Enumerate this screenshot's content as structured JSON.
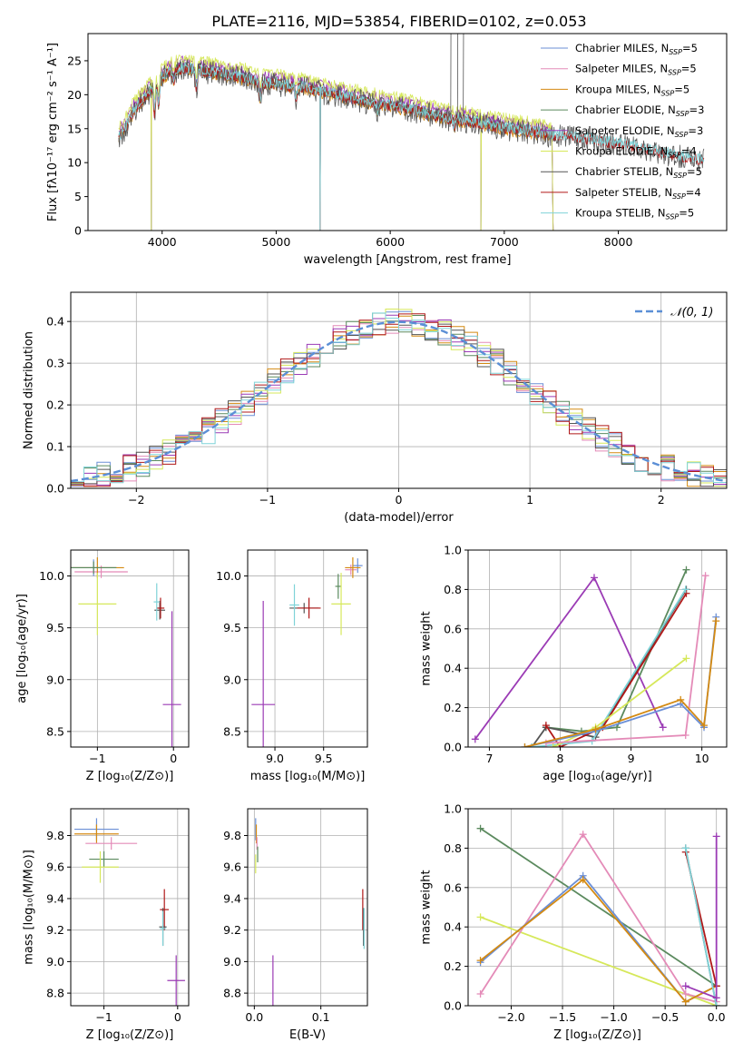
{
  "title": "PLATE=2116, MJD=53854, FIBERID=0102, z=0.053",
  "colors": {
    "c1": "#6b8fd6",
    "c2": "#e48bb8",
    "c3": "#d48a12",
    "c4": "#5b8a5e",
    "c5": "#9b3bb5",
    "c6": "#d6e85a",
    "c7": "#555555",
    "c8": "#b01818",
    "c9": "#7fd3d8",
    "gauss": "#5b8fd6",
    "grid": "#b0b0b0"
  },
  "chart_data": [
    {
      "id": "spectrum",
      "type": "line",
      "xlabel": "wavelength [Angstrom, rest frame]",
      "ylabel": "Flux [fλ10⁻¹⁷ erg cm⁻² s⁻¹ A⁻¹]",
      "xlim": [
        3350,
        8950
      ],
      "ylim": [
        0,
        29
      ],
      "xticks": [
        4000,
        5000,
        6000,
        7000,
        8000
      ],
      "yticks": [
        0,
        5,
        10,
        15,
        20,
        25
      ],
      "grid": false,
      "legend_position": "top-right",
      "continuum": [
        [
          3620,
          15.5
        ],
        [
          3700,
          16.5
        ],
        [
          3800,
          18.5
        ],
        [
          3900,
          20.5
        ],
        [
          4000,
          22.5
        ],
        [
          4100,
          23.5
        ],
        [
          4200,
          23.8
        ],
        [
          4300,
          23.4
        ],
        [
          4400,
          23.3
        ],
        [
          4500,
          23.0
        ],
        [
          4600,
          22.6
        ],
        [
          4700,
          22.4
        ],
        [
          4800,
          22.0
        ],
        [
          4900,
          21.5
        ],
        [
          5000,
          21.5
        ],
        [
          5100,
          21.2
        ],
        [
          5200,
          21.0
        ],
        [
          5300,
          20.8
        ],
        [
          5400,
          20.3
        ],
        [
          5500,
          20.0
        ],
        [
          5600,
          19.6
        ],
        [
          5700,
          19.2
        ],
        [
          5800,
          18.8
        ],
        [
          5900,
          18.6
        ],
        [
          6000,
          18.2
        ],
        [
          6100,
          18.0
        ],
        [
          6200,
          17.6
        ],
        [
          6300,
          17.2
        ],
        [
          6400,
          16.8
        ],
        [
          6500,
          16.4
        ],
        [
          6600,
          16.2
        ],
        [
          6700,
          15.9
        ],
        [
          6800,
          15.6
        ],
        [
          6900,
          15.3
        ],
        [
          7000,
          15.0
        ],
        [
          7100,
          14.7
        ],
        [
          7200,
          14.5
        ],
        [
          7300,
          14.3
        ],
        [
          7400,
          14.0
        ],
        [
          7500,
          13.9
        ],
        [
          7600,
          13.6
        ],
        [
          7700,
          13.4
        ],
        [
          7800,
          13.2
        ],
        [
          7900,
          12.9
        ],
        [
          8000,
          12.6
        ],
        [
          8100,
          12.4
        ],
        [
          8200,
          12.0
        ],
        [
          8300,
          11.6
        ],
        [
          8400,
          11.3
        ],
        [
          8500,
          11.0
        ],
        [
          8600,
          10.6
        ],
        [
          8700,
          10.3
        ]
      ],
      "series": [
        {
          "name": "Chabrier MILES, N",
          "sub": "SSP",
          "suffix": "=5",
          "color_key": "c1",
          "end": 7420,
          "offset": 0.0,
          "deep_lines": []
        },
        {
          "name": "Salpeter MILES, N",
          "sub": "SSP",
          "suffix": "=5",
          "color_key": "c2",
          "end": 7420,
          "offset": 0.2,
          "deep_lines": []
        },
        {
          "name": "Kroupa MILES, N",
          "sub": "SSP",
          "suffix": "=5",
          "color_key": "c3",
          "end": 7420,
          "offset": -0.2,
          "deep_lines": []
        },
        {
          "name": "Chabrier ELODIE, N",
          "sub": "SSP",
          "suffix": "=3",
          "color_key": "c4",
          "end": 7420,
          "offset": 0.4,
          "deep_lines": [
            3905,
            6795
          ]
        },
        {
          "name": "Salpeter ELODIE, N",
          "sub": "SSP",
          "suffix": "=3",
          "color_key": "c5",
          "end": 7420,
          "offset": 1.2,
          "deep_lines": [
            3905,
            6795
          ]
        },
        {
          "name": "Kroupa ELODIE, N",
          "sub": "SSP",
          "suffix": "=4",
          "color_key": "c6",
          "end": 7420,
          "offset": 1.6,
          "deep_lines": [
            3905,
            6795
          ]
        },
        {
          "name": "Chabrier STELIB, N",
          "sub": "SSP",
          "suffix": "=5",
          "color_key": "c7",
          "end": 8750,
          "offset": 0.0,
          "deep_lines": [
            5385
          ]
        },
        {
          "name": "Salpeter STELIB, N",
          "sub": "SSP",
          "suffix": "=4",
          "color_key": "c8",
          "end": 8750,
          "offset": 0.1,
          "deep_lines": [
            5385
          ]
        },
        {
          "name": "Kroupa STELIB, N",
          "sub": "SSP",
          "suffix": "=5",
          "color_key": "c9",
          "end": 8750,
          "offset": 0.3,
          "deep_lines": [
            5385
          ]
        }
      ]
    },
    {
      "id": "residuals",
      "type": "step",
      "xlabel": "(data-model)/error",
      "ylabel": "Normed distribution",
      "xlim": [
        -2.5,
        2.5
      ],
      "ylim": [
        0,
        0.47
      ],
      "xticks": [
        -2,
        -1,
        0,
        1,
        2
      ],
      "yticks": [
        0.0,
        0.1,
        0.2,
        0.3,
        0.4
      ],
      "grid": true,
      "legend_position": "top-right",
      "gaussian_label": "𝒩(0, 1)",
      "bin_width": 0.1
    },
    {
      "id": "age-vs-Z",
      "type": "errorbar",
      "xlabel": "Z [log₁₀(Z/Z⊙)]",
      "ylabel": "age  [log₁₀(age/yr)]",
      "xlim": [
        -1.35,
        0.2
      ],
      "ylim": [
        8.35,
        10.25
      ],
      "xticks": [
        -1,
        0
      ],
      "yticks": [
        8.5,
        9.0,
        9.5,
        10.0
      ],
      "grid": true,
      "points": [
        {
          "color_key": "c1",
          "x": -1.05,
          "xerr": 0.3,
          "y": 10.08,
          "yerr": 0.08
        },
        {
          "color_key": "c2",
          "x": -0.95,
          "xerr": 0.35,
          "y": 10.04,
          "yerr": 0.06
        },
        {
          "color_key": "c3",
          "x": -1.0,
          "xerr": 0.35,
          "y": 10.08,
          "yerr": 0.1
        },
        {
          "color_key": "c4",
          "x": -1.05,
          "xerr": 0.3,
          "y": 10.08,
          "yerr": 0.06
        },
        {
          "color_key": "c6",
          "x": -1.0,
          "xerr": 0.25,
          "y": 9.73,
          "yerr": 0.3
        },
        {
          "color_key": "c7",
          "x": -0.18,
          "xerr": 0.07,
          "y": 9.67,
          "yerr": 0.09
        },
        {
          "color_key": "c8",
          "x": -0.17,
          "xerr": 0.05,
          "y": 9.69,
          "yerr": 0.1
        },
        {
          "color_key": "c9",
          "x": -0.22,
          "xerr": 0.04,
          "y": 9.75,
          "yerr": 0.18
        },
        {
          "color_key": "c5",
          "x": -0.02,
          "xerr": 0.12,
          "y": 8.76,
          "yerr": 0.9
        }
      ]
    },
    {
      "id": "age-vs-mass",
      "type": "errorbar",
      "xlabel": "mass [log₁₀(M/M⊙)]",
      "ylabel": "",
      "xlim": [
        8.72,
        9.95
      ],
      "ylim": [
        8.35,
        10.25
      ],
      "xticks": [
        9.0,
        9.5
      ],
      "yticks": [
        8.5,
        9.0,
        9.5,
        10.0
      ],
      "grid": true,
      "points": [
        {
          "color_key": "c1",
          "x": 9.85,
          "xerr": 0.05,
          "y": 10.1,
          "yerr": 0.07
        },
        {
          "color_key": "c2",
          "x": 9.78,
          "xerr": 0.06,
          "y": 10.06,
          "yerr": 0.05
        },
        {
          "color_key": "c3",
          "x": 9.8,
          "xerr": 0.08,
          "y": 10.08,
          "yerr": 0.1
        },
        {
          "color_key": "c4",
          "x": 9.65,
          "xerr": 0.03,
          "y": 9.9,
          "yerr": 0.12
        },
        {
          "color_key": "c6",
          "x": 9.68,
          "xerr": 0.1,
          "y": 9.73,
          "yerr": 0.3
        },
        {
          "color_key": "c7",
          "x": 9.3,
          "xerr": 0.15,
          "y": 9.69,
          "yerr": 0.05
        },
        {
          "color_key": "c8",
          "x": 9.35,
          "xerr": 0.12,
          "y": 9.69,
          "yerr": 0.1
        },
        {
          "color_key": "c9",
          "x": 9.2,
          "xerr": 0.05,
          "y": 9.72,
          "yerr": 0.2
        },
        {
          "color_key": "c5",
          "x": 8.88,
          "xerr": 0.12,
          "y": 8.76,
          "yerr": 1.0
        }
      ]
    },
    {
      "id": "weight-vs-age",
      "type": "line",
      "xlabel": "age  [log₁₀(age/yr)]",
      "ylabel": "mass weight",
      "xlim": [
        6.7,
        10.35
      ],
      "ylim": [
        0,
        1.0
      ],
      "xticks": [
        7,
        8,
        9,
        10
      ],
      "yticks": [
        0.0,
        0.2,
        0.4,
        0.6,
        0.8,
        1.0
      ],
      "grid": true,
      "series": [
        {
          "color_key": "c5",
          "points": [
            [
              6.8,
              0.04
            ],
            [
              8.48,
              0.86
            ],
            [
              9.45,
              0.1
            ]
          ]
        },
        {
          "color_key": "c4",
          "points": [
            [
              7.8,
              0.1
            ],
            [
              8.3,
              0.08
            ],
            [
              8.8,
              0.1
            ],
            [
              9.78,
              0.9
            ]
          ]
        },
        {
          "color_key": "c7",
          "points": [
            [
              7.6,
              0.0
            ],
            [
              7.8,
              0.1
            ],
            [
              8.5,
              0.05
            ],
            [
              9.78,
              0.8
            ]
          ]
        },
        {
          "color_key": "c8",
          "points": [
            [
              7.8,
              0.11
            ],
            [
              8.0,
              0.0
            ],
            [
              8.6,
              0.1
            ],
            [
              9.78,
              0.78
            ]
          ]
        },
        {
          "color_key": "c9",
          "points": [
            [
              7.6,
              0.0
            ],
            [
              8.45,
              0.03
            ],
            [
              9.77,
              0.8
            ]
          ]
        },
        {
          "color_key": "c6",
          "points": [
            [
              7.9,
              0.0
            ],
            [
              8.5,
              0.1
            ],
            [
              9.78,
              0.45
            ]
          ]
        },
        {
          "color_key": "c2",
          "points": [
            [
              7.8,
              0.02
            ],
            [
              9.77,
              0.06
            ],
            [
              10.05,
              0.87
            ]
          ]
        },
        {
          "color_key": "c1",
          "points": [
            [
              7.5,
              0.0
            ],
            [
              8.5,
              0.08
            ],
            [
              9.7,
              0.22
            ],
            [
              10.03,
              0.1
            ],
            [
              10.2,
              0.66
            ]
          ]
        },
        {
          "color_key": "c3",
          "points": [
            [
              7.5,
              0.0
            ],
            [
              8.5,
              0.09
            ],
            [
              9.7,
              0.24
            ],
            [
              10.03,
              0.11
            ],
            [
              10.2,
              0.64
            ]
          ]
        }
      ]
    },
    {
      "id": "mass-vs-Z",
      "type": "errorbar",
      "xlabel": "Z [log₁₀(Z/Z⊙)]",
      "ylabel": "mass [log₁₀(M/M⊙)]",
      "xlim": [
        -1.45,
        0.15
      ],
      "ylim": [
        8.72,
        9.97
      ],
      "xticks": [
        -1,
        0
      ],
      "yticks": [
        8.8,
        9.0,
        9.2,
        9.4,
        9.6,
        9.8
      ],
      "grid": true,
      "points": [
        {
          "color_key": "c1",
          "x": -1.1,
          "xerr": 0.3,
          "y": 9.84,
          "yerr": 0.07
        },
        {
          "color_key": "c3",
          "x": -1.1,
          "xerr": 0.3,
          "y": 9.81,
          "yerr": 0.06
        },
        {
          "color_key": "c2",
          "x": -0.9,
          "xerr": 0.35,
          "y": 9.75,
          "yerr": 0.04
        },
        {
          "color_key": "c4",
          "x": -1.0,
          "xerr": 0.2,
          "y": 9.65,
          "yerr": 0.05
        },
        {
          "color_key": "c6",
          "x": -1.05,
          "xerr": 0.25,
          "y": 9.6,
          "yerr": 0.1
        },
        {
          "color_key": "c8",
          "x": -0.18,
          "xerr": 0.06,
          "y": 9.33,
          "yerr": 0.13
        },
        {
          "color_key": "c7",
          "x": -0.2,
          "xerr": 0.05,
          "y": 9.22,
          "yerr": 0.12
        },
        {
          "color_key": "c9",
          "x": -0.2,
          "xerr": 0.04,
          "y": 9.21,
          "yerr": 0.11
        },
        {
          "color_key": "c5",
          "x": -0.02,
          "xerr": 0.12,
          "y": 8.88,
          "yerr": 0.16
        }
      ]
    },
    {
      "id": "mass-vs-ebv",
      "type": "errorbar",
      "xlabel": "E(B-V)",
      "ylabel": "",
      "xlim": [
        -0.01,
        0.17
      ],
      "ylim": [
        8.72,
        9.97
      ],
      "xticks": [
        0.0,
        0.1
      ],
      "yticks": [
        8.8,
        9.0,
        9.2,
        9.4,
        9.6,
        9.8
      ],
      "grid": true,
      "points": [
        {
          "color_key": "c1",
          "x": 0.002,
          "y": 9.84,
          "yerr": 0.07
        },
        {
          "color_key": "c3",
          "x": 0.003,
          "y": 9.81,
          "yerr": 0.06
        },
        {
          "color_key": "c2",
          "x": 0.004,
          "y": 9.75,
          "yerr": 0.04
        },
        {
          "color_key": "c4",
          "x": 0.005,
          "y": 9.68,
          "yerr": 0.05
        },
        {
          "color_key": "c6",
          "x": 0.002,
          "y": 9.62,
          "yerr": 0.06
        },
        {
          "color_key": "c5",
          "x": 0.028,
          "y": 8.88,
          "yerr": 0.16
        },
        {
          "color_key": "c8",
          "x": 0.163,
          "y": 9.33,
          "yerr": 0.13
        },
        {
          "color_key": "c7",
          "x": 0.164,
          "y": 9.22,
          "yerr": 0.12
        },
        {
          "color_key": "c9",
          "x": 0.165,
          "y": 9.21,
          "yerr": 0.13
        }
      ]
    },
    {
      "id": "weight-vs-Z",
      "type": "line",
      "xlabel": "Z [log₁₀(Z/Z⊙)]",
      "ylabel": "mass weight",
      "xlim": [
        -2.42,
        0.1
      ],
      "ylim": [
        0,
        1.0
      ],
      "xticks": [
        -2.0,
        -1.5,
        -1.0,
        -0.5,
        0.0
      ],
      "yticks": [
        0.0,
        0.2,
        0.4,
        0.6,
        0.8,
        1.0
      ],
      "grid": true,
      "series": [
        {
          "color_key": "c4",
          "points": [
            [
              -2.3,
              0.9
            ],
            [
              0.0,
              0.1
            ]
          ]
        },
        {
          "color_key": "c6",
          "points": [
            [
              -2.3,
              0.45
            ],
            [
              0.0,
              0.0
            ]
          ]
        },
        {
          "color_key": "c2",
          "points": [
            [
              -2.3,
              0.06
            ],
            [
              -1.3,
              0.87
            ],
            [
              -0.3,
              0.06
            ],
            [
              0.0,
              0.02
            ]
          ]
        },
        {
          "color_key": "c1",
          "points": [
            [
              -2.3,
              0.22
            ],
            [
              -1.3,
              0.66
            ],
            [
              -0.3,
              0.02
            ],
            [
              0.0,
              0.1
            ]
          ]
        },
        {
          "color_key": "c3",
          "points": [
            [
              -2.3,
              0.23
            ],
            [
              -1.3,
              0.64
            ],
            [
              -0.3,
              0.02
            ],
            [
              0.0,
              0.1
            ]
          ]
        },
        {
          "color_key": "c7",
          "points": [
            [
              -0.3,
              0.8
            ],
            [
              0.0,
              0.0
            ]
          ]
        },
        {
          "color_key": "c8",
          "points": [
            [
              -0.3,
              0.78
            ],
            [
              0.0,
              0.1
            ]
          ]
        },
        {
          "color_key": "c9",
          "points": [
            [
              -0.3,
              0.8
            ],
            [
              0.0,
              0.0
            ]
          ]
        },
        {
          "color_key": "c5",
          "points": [
            [
              -0.3,
              0.1
            ],
            [
              0.0,
              0.04
            ],
            [
              0.0,
              0.86
            ]
          ]
        }
      ]
    }
  ]
}
